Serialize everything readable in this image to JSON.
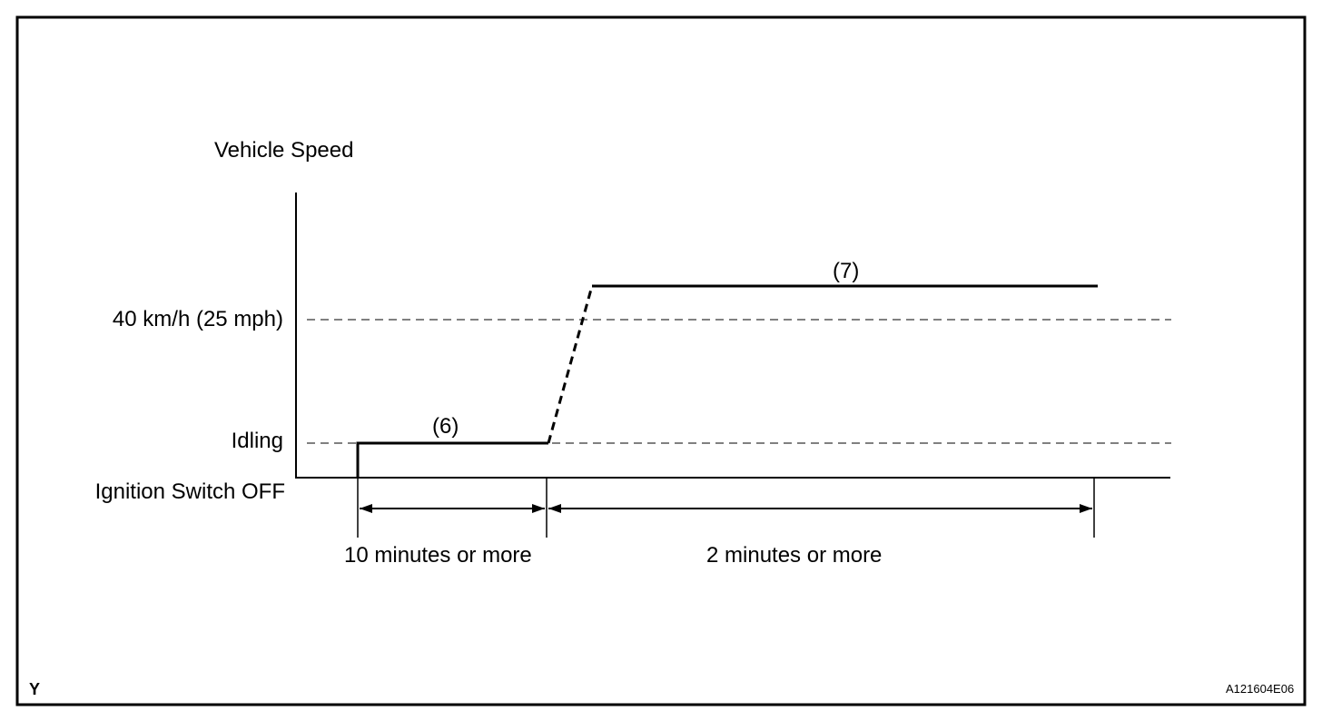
{
  "diagram": {
    "y_axis_label": "Vehicle Speed",
    "levels": [
      "40 km/h (25 mph)",
      "Idling",
      "Ignition Switch OFF"
    ],
    "step_labels": [
      "(6)",
      "(7)"
    ],
    "durations": [
      "10 minutes or more",
      "2 minutes or more"
    ],
    "corner_label": "Y",
    "figure_id": "A121604E06"
  }
}
